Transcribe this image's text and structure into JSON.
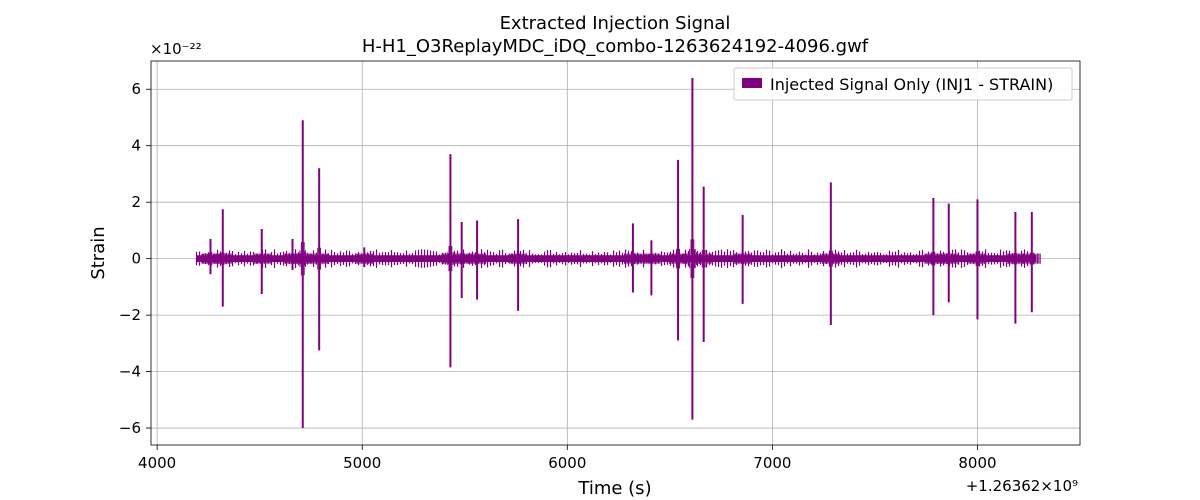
{
  "chart_data": {
    "type": "line",
    "title": "Extracted Injection Signal",
    "subtitle": "H-H1_O3ReplayMDC_iDQ_combo-1263624192-4096.gwf",
    "xlabel": "Time (s)",
    "ylabel": "Strain",
    "x_offset_label": "+1.26362×10⁹",
    "y_multiplier_label": "×10⁻²²",
    "xlim": [
      3970,
      8500
    ],
    "ylim": [
      -6.6,
      7.0
    ],
    "xticks": [
      4000,
      5000,
      6000,
      7000,
      8000
    ],
    "xtick_labels": [
      "4000",
      "5000",
      "6000",
      "7000",
      "8000"
    ],
    "yticks": [
      -6,
      -4,
      -2,
      0,
      2,
      4,
      6
    ],
    "ytick_labels": [
      "−6",
      "−4",
      "−2",
      "0",
      "2",
      "4",
      "6"
    ],
    "grid": true,
    "legend_position": "top-right",
    "series": [
      {
        "name": "Injected Signal Only (INJ1 - STRAIN)",
        "color": "#800080",
        "x_range": [
          4192,
          8288
        ],
        "background_band": [
          -0.12,
          0.12
        ],
        "spikes": [
          {
            "x": 4260,
            "max": 0.7,
            "min": -0.55
          },
          {
            "x": 4320,
            "max": 1.75,
            "min": -1.7
          },
          {
            "x": 4510,
            "max": 1.05,
            "min": -1.25
          },
          {
            "x": 4660,
            "max": 0.7,
            "min": -0.4
          },
          {
            "x": 4710,
            "max": 4.9,
            "min": -6.0
          },
          {
            "x": 4790,
            "max": 3.2,
            "min": -3.25
          },
          {
            "x": 5010,
            "max": 0.4,
            "min": -0.3
          },
          {
            "x": 5430,
            "max": 3.7,
            "min": -3.85
          },
          {
            "x": 5485,
            "max": 1.3,
            "min": -1.4
          },
          {
            "x": 5560,
            "max": 1.35,
            "min": -1.45
          },
          {
            "x": 5760,
            "max": 1.4,
            "min": -1.85
          },
          {
            "x": 6320,
            "max": 1.25,
            "min": -1.2
          },
          {
            "x": 6410,
            "max": 0.65,
            "min": -1.3
          },
          {
            "x": 6540,
            "max": 3.5,
            "min": -2.9
          },
          {
            "x": 6610,
            "max": 6.4,
            "min": -5.7
          },
          {
            "x": 6665,
            "max": 2.55,
            "min": -2.95
          },
          {
            "x": 6855,
            "max": 1.55,
            "min": -1.6
          },
          {
            "x": 7285,
            "max": 2.7,
            "min": -2.35
          },
          {
            "x": 7785,
            "max": 2.15,
            "min": -2.0
          },
          {
            "x": 7860,
            "max": 1.95,
            "min": -1.55
          },
          {
            "x": 8000,
            "max": 2.1,
            "min": -2.15
          },
          {
            "x": 8185,
            "max": 1.65,
            "min": -2.3
          },
          {
            "x": 8265,
            "max": 1.65,
            "min": -1.9
          }
        ]
      }
    ]
  }
}
